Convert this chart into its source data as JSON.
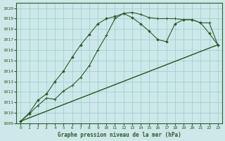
{
  "title": "Graphe pression niveau de la mer (hPa)",
  "bg_color": "#cce8e8",
  "grid_color": "#99cccc",
  "line_color": "#2d5a2d",
  "xlim": [
    -0.5,
    23.5
  ],
  "ylim": [
    1009,
    1020.5
  ],
  "xticks": [
    0,
    1,
    2,
    3,
    4,
    5,
    6,
    7,
    8,
    9,
    10,
    11,
    12,
    13,
    14,
    15,
    16,
    17,
    18,
    19,
    20,
    21,
    22,
    23
  ],
  "yticks": [
    1009,
    1010,
    1011,
    1012,
    1013,
    1014,
    1015,
    1016,
    1017,
    1018,
    1019,
    1020
  ],
  "series1_x": [
    0,
    1,
    2,
    3,
    4,
    5,
    6,
    7,
    8,
    9,
    10,
    11,
    12,
    13,
    14,
    15,
    16,
    17,
    18,
    19,
    20,
    21,
    22,
    23
  ],
  "series1_y": [
    1009.2,
    1009.9,
    1010.7,
    1011.4,
    1011.3,
    1012.1,
    1012.6,
    1013.4,
    1014.5,
    1016.0,
    1017.4,
    1019.0,
    1019.5,
    1019.6,
    1019.4,
    1019.1,
    1019.0,
    1019.0,
    1019.0,
    1018.9,
    1018.9,
    1018.6,
    1018.6,
    1016.5
  ],
  "series2_x": [
    0,
    1,
    2,
    3,
    4,
    5,
    6,
    7,
    8,
    9,
    10,
    11,
    12,
    13,
    14,
    15,
    16,
    17,
    18,
    19,
    20,
    21,
    22,
    23
  ],
  "series2_y": [
    1009.2,
    1010.0,
    1011.2,
    1011.8,
    1013.0,
    1014.0,
    1015.3,
    1016.5,
    1017.5,
    1018.5,
    1019.0,
    1019.2,
    1019.5,
    1019.1,
    1018.5,
    1017.8,
    1017.0,
    1016.8,
    1018.5,
    1018.9,
    1018.9,
    1018.6,
    1017.6,
    1016.5
  ],
  "series3_x": [
    0,
    23
  ],
  "series3_y": [
    1009.2,
    1016.5
  ],
  "series4_x": [
    0,
    23
  ],
  "series4_y": [
    1009.2,
    1016.5
  ]
}
